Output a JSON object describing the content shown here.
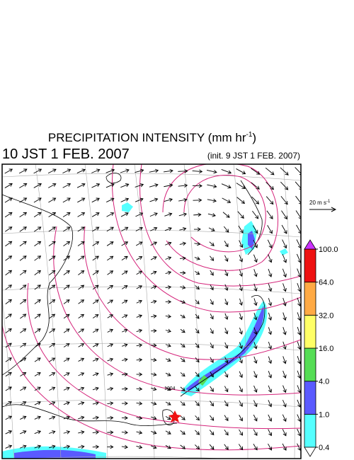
{
  "header": {
    "title": {
      "text": "PRECIPITATION INTENSITY (mm hr",
      "sup": "-1",
      "close": ")"
    },
    "valid_time": "10 JST 1 FEB. 2007",
    "init_time": "(init. 9 JST 1 FEB. 2007)"
  },
  "wind_scale": {
    "text": "20 m s",
    "sup": "-1"
  },
  "isobar_labels": [
    "1004"
  ],
  "colorbar": {
    "ticks": [
      0.4,
      {
        "value": 1,
        "label": "1.0"
      },
      {
        "value": 4,
        "label": "4.0"
      },
      {
        "value": 16,
        "label": "16.0"
      },
      {
        "value": 32,
        "label": "32.0"
      },
      {
        "value": 64,
        "label": "64.0"
      },
      {
        "value": 100,
        "label": "100.0"
      }
    ],
    "colors": [
      "#55ffff",
      "#5a5aff",
      "#55dd55",
      "#ffff66",
      "#ffaa44",
      "#ee1111"
    ],
    "below_color": "#ffffff",
    "above_color": "#cc33ff"
  }
}
